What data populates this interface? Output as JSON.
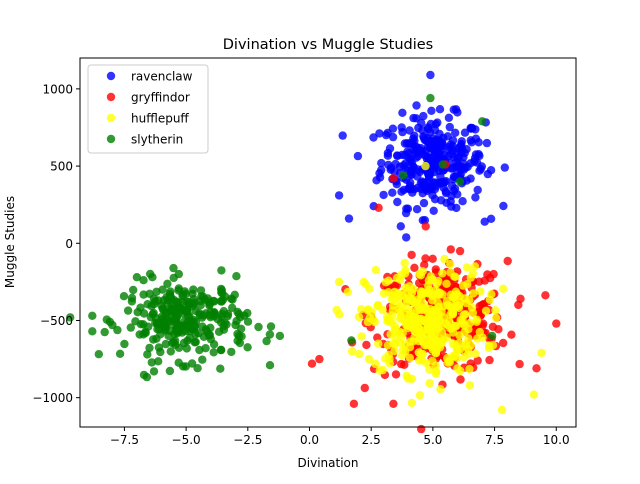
{
  "chart_data": {
    "type": "scatter",
    "title": "Divination vs Muggle Studies",
    "xlabel": "Divination",
    "ylabel": "Muggle Studies",
    "xlim": [
      -9.3,
      10.8
    ],
    "ylim": [
      -1190,
      1200
    ],
    "xticks": [
      -7.5,
      -5.0,
      -2.5,
      0.0,
      2.5,
      5.0,
      7.5,
      10.0
    ],
    "xtick_labels": [
      "−7.5",
      "−5.0",
      "−2.5",
      "0.0",
      "2.5",
      "5.0",
      "7.5",
      "10.0"
    ],
    "yticks": [
      -1000,
      -500,
      0,
      500,
      1000
    ],
    "ytick_labels": [
      "−1000",
      "−500",
      "0",
      "500",
      "1000"
    ],
    "grid": false,
    "legend_placement": "top-left",
    "point_opacity": 0.8,
    "series": [
      {
        "name": "ravenclaw",
        "color": "#0000ff",
        "center": [
          5.0,
          530
        ],
        "spread": [
          1.05,
          145
        ],
        "count": 320,
        "outliers": [
          [
            4.9,
            1090
          ],
          [
            1.2,
            310
          ],
          [
            1.6,
            160
          ],
          [
            2.6,
            240
          ],
          [
            7.1,
            140
          ],
          [
            3.7,
            110
          ]
        ]
      },
      {
        "name": "gryffindor",
        "color": "#ff0000",
        "center": [
          5.3,
          -480
        ],
        "spread": [
          1.35,
          180
        ],
        "count": 330,
        "outliers": [
          [
            0.1,
            -780
          ],
          [
            0.4,
            -750
          ],
          [
            1.8,
            -1040
          ],
          [
            10.0,
            -520
          ],
          [
            9.2,
            -810
          ],
          [
            3.4,
            -1040
          ],
          [
            2.8,
            230
          ],
          [
            3.4,
            420
          ],
          [
            5.5,
            510
          ]
        ]
      },
      {
        "name": "hufflepuff",
        "color": "#ffff00",
        "center": [
          4.7,
          -500
        ],
        "spread": [
          1.2,
          170
        ],
        "count": 360,
        "outliers": [
          [
            9.4,
            -710
          ],
          [
            9.1,
            -980
          ],
          [
            7.8,
            -1080
          ],
          [
            1.2,
            -250
          ],
          [
            4.7,
            500
          ],
          [
            6.5,
            -920
          ]
        ]
      },
      {
        "name": "slytherin",
        "color": "#008000",
        "center": [
          -5.0,
          -500
        ],
        "spread": [
          1.25,
          125
        ],
        "count": 280,
        "outliers": [
          [
            -8.8,
            -470
          ],
          [
            -8.8,
            -570
          ],
          [
            -1.2,
            -600
          ],
          [
            -1.6,
            -790
          ],
          [
            -6.3,
            -830
          ],
          [
            4.9,
            940
          ],
          [
            7.0,
            790
          ],
          [
            3.8,
            440
          ],
          [
            6.1,
            400
          ],
          [
            5.4,
            510
          ],
          [
            1.7,
            -630
          ],
          [
            7.4,
            -600
          ]
        ]
      }
    ]
  }
}
